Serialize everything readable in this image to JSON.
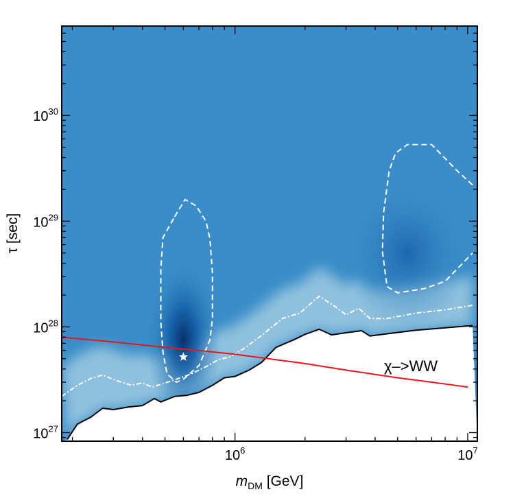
{
  "chart_data": {
    "type": "heatmap",
    "xlabel": {
      "main": "m",
      "sub": "DM",
      "unit": " [GeV]"
    },
    "ylabel": "τ [sec]",
    "x_scale": "log",
    "y_scale": "log",
    "xlim": [
      180000,
      11000000
    ],
    "ylim": [
      8.3e+26,
      7e+30
    ],
    "x_ticks": [
      {
        "value": 1000000,
        "base": "10",
        "exp": "6"
      },
      {
        "value": 10000000,
        "base": "10",
        "exp": "7"
      }
    ],
    "y_ticks": [
      {
        "value": 1e+27,
        "base": "10",
        "exp": "27"
      },
      {
        "value": 1e+28,
        "base": "10",
        "exp": "28"
      },
      {
        "value": 1e+29,
        "base": "10",
        "exp": "29"
      },
      {
        "value": 1e+30,
        "base": "10",
        "exp": "30"
      }
    ],
    "annotation": "χ–>WW",
    "colors": {
      "map_base": "#3a8dc8",
      "map_peak": "#08306b",
      "map_light": "#9ecae1",
      "excluded_region": "#ffffff",
      "red_line": "#e8161b",
      "exclusion_line": "#000000",
      "contour_line": "#ffffff"
    },
    "series": [
      {
        "kind": "exclusion_boundary",
        "points": [
          [
            190000,
            8.6e+26
          ],
          [
            210000,
            1.2e+27
          ],
          [
            240000,
            1.4e+27
          ],
          [
            270000,
            1.7e+27
          ],
          [
            300000,
            1.65e+27
          ],
          [
            350000,
            1.75e+27
          ],
          [
            400000,
            1.8e+27
          ],
          [
            450000,
            2.1e+27
          ],
          [
            480000,
            1.95e+27
          ],
          [
            550000,
            2.2e+27
          ],
          [
            620000,
            2.25e+27
          ],
          [
            700000,
            2.4e+27
          ],
          [
            800000,
            2.8e+27
          ],
          [
            900000,
            3.3e+27
          ],
          [
            1000000,
            3.4e+27
          ],
          [
            1150000,
            3.9e+27
          ],
          [
            1300000,
            4.6e+27
          ],
          [
            1500000,
            6.4e+27
          ],
          [
            1800000,
            7.6e+27
          ],
          [
            2000000,
            8.5e+27
          ],
          [
            2300000,
            9.5e+27
          ],
          [
            2600000,
            8.4e+27
          ],
          [
            3000000,
            8.8e+27
          ],
          [
            3500000,
            9.2e+27
          ],
          [
            3800000,
            8.2e+27
          ],
          [
            4500000,
            8.6e+27
          ],
          [
            6000000,
            9.3e+27
          ],
          [
            8000000,
            9.8e+27
          ],
          [
            10500000,
            1.03e+28
          ]
        ]
      },
      {
        "kind": "outer_contour",
        "points": [
          [
            180000,
            2.2e+27
          ],
          [
            210000,
            2.8e+27
          ],
          [
            240000,
            3.25e+27
          ],
          [
            270000,
            3.5e+27
          ],
          [
            310000,
            3.1e+27
          ],
          [
            360000,
            2.8e+27
          ],
          [
            400000,
            2.95e+27
          ],
          [
            440000,
            2.7e+27
          ],
          [
            490000,
            2.9e+27
          ],
          [
            560000,
            3.2e+27
          ],
          [
            650000,
            3.6e+27
          ],
          [
            750000,
            4.2e+27
          ],
          [
            850000,
            4.9e+27
          ],
          [
            950000,
            5.2e+27
          ],
          [
            1100000,
            6.3e+27
          ],
          [
            1300000,
            8.3e+27
          ],
          [
            1600000,
            1.2e+28
          ],
          [
            1900000,
            1.35e+28
          ],
          [
            2300000,
            1.95e+28
          ],
          [
            2700000,
            1.55e+28
          ],
          [
            3000000,
            1.3e+28
          ],
          [
            3400000,
            1.5e+28
          ],
          [
            3800000,
            1.2e+28
          ],
          [
            4500000,
            1.2e+28
          ],
          [
            6000000,
            1.35e+28
          ],
          [
            8000000,
            1.45e+28
          ],
          [
            10500000,
            1.6e+28
          ]
        ]
      },
      {
        "kind": "inner_contour_left",
        "points": [
          [
            550000,
            1.1e+29
          ],
          [
            610000,
            1.6e+29
          ],
          [
            680000,
            1.4e+29
          ],
          [
            750000,
            1e+29
          ],
          [
            780000,
            6.8e+28
          ],
          [
            800000,
            3.2e+28
          ],
          [
            800000,
            1.2e+28
          ],
          [
            780000,
            7.5e+27
          ],
          [
            700000,
            4.3e+27
          ],
          [
            600000,
            3.2e+27
          ],
          [
            560000,
            3e+27
          ],
          [
            510000,
            3.6e+27
          ],
          [
            490000,
            5.8e+27
          ],
          [
            480000,
            1.1e+28
          ],
          [
            480000,
            3.5e+28
          ],
          [
            490000,
            7e+28
          ],
          [
            550000,
            1.1e+29
          ]
        ]
      },
      {
        "kind": "inner_contour_right",
        "points": [
          [
            10500000,
            2.2e+29
          ],
          [
            9000000,
            3e+29
          ],
          [
            7000000,
            5.3e+29
          ],
          [
            5500000,
            5.3e+29
          ],
          [
            4900000,
            4.4e+29
          ],
          [
            4600000,
            3e+29
          ],
          [
            4350000,
            1.2e+29
          ],
          [
            4300000,
            5.2e+28
          ],
          [
            4500000,
            2.4e+28
          ],
          [
            5000000,
            2.1e+28
          ],
          [
            6500000,
            2.3e+28
          ],
          [
            8000000,
            2.7e+28
          ],
          [
            10500000,
            5e+28
          ]
        ]
      },
      {
        "kind": "red_line",
        "points": [
          [
            180000,
            8e+27
          ],
          [
            300000,
            7.2e+27
          ],
          [
            500000,
            6.4e+27
          ],
          [
            800000,
            5.8e+27
          ],
          [
            1000000,
            5.5e+27
          ],
          [
            1500000,
            4.9e+27
          ],
          [
            2000000,
            4.5e+27
          ],
          [
            3000000,
            3.9e+27
          ],
          [
            5000000,
            3.3e+27
          ],
          [
            7000000,
            3e+27
          ],
          [
            10000000,
            2.7e+27
          ]
        ]
      },
      {
        "kind": "best_fit_marker",
        "points": [
          [
            600000,
            5.2e+27
          ]
        ]
      }
    ],
    "hotspots": [
      {
        "x": 600000,
        "y": 5.3e+27,
        "strength": 1.0
      },
      {
        "x": 5500000,
        "y": 5e+28,
        "strength": 0.55
      }
    ]
  }
}
